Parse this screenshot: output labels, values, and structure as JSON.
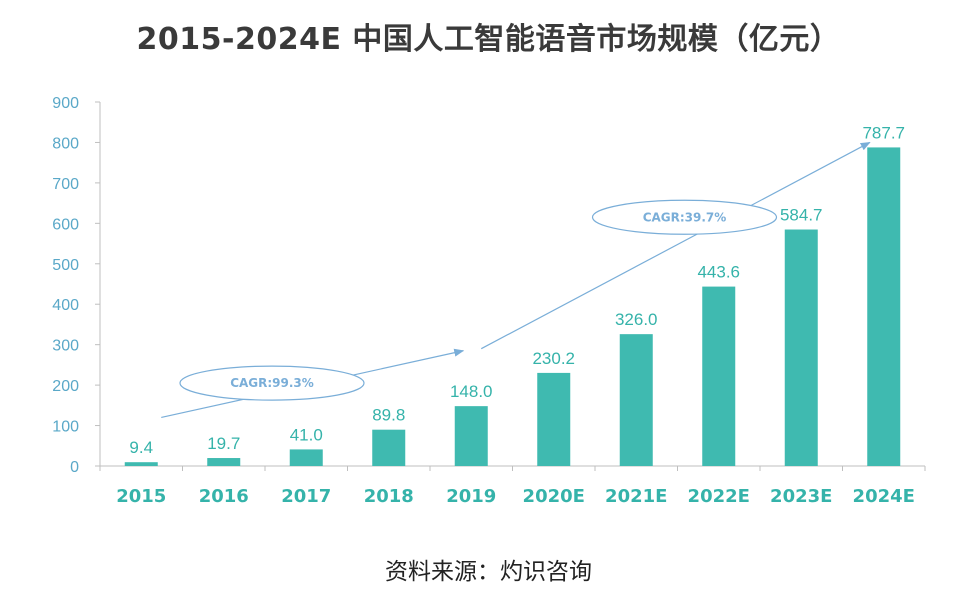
{
  "chart_data": {
    "type": "bar",
    "title": "2015-2024E 中国人工智能语音市场规模（亿元）",
    "categories": [
      "2015",
      "2016",
      "2017",
      "2018",
      "2019",
      "2020E",
      "2021E",
      "2022E",
      "2023E",
      "2024E"
    ],
    "values": [
      9.4,
      19.7,
      41.0,
      89.8,
      148.0,
      230.2,
      326.0,
      443.6,
      584.7,
      787.7
    ],
    "value_labels": [
      "9.4",
      "19.7",
      "41.0",
      "89.8",
      "148.0",
      "230.2",
      "326.0",
      "443.6",
      "584.7",
      "787.7"
    ],
    "y_ticks": [
      0,
      100,
      200,
      300,
      400,
      500,
      600,
      700,
      800,
      900
    ],
    "ylim": [
      0,
      900
    ],
    "xlabel": "",
    "ylabel": "",
    "bar_color": "#3fbab0",
    "annotations": [
      {
        "text": "CAGR:99.3%",
        "from": "2015",
        "to": "2019"
      },
      {
        "text": "CAGR:39.7%",
        "from": "2019",
        "to": "2024E"
      }
    ],
    "colors": {
      "axis": "#bfbfbf",
      "tick_text": "#5aa8c8",
      "category_text": "#35b3aa",
      "annotation": "#7aaed8"
    }
  },
  "source": "资料来源：灼识咨询"
}
